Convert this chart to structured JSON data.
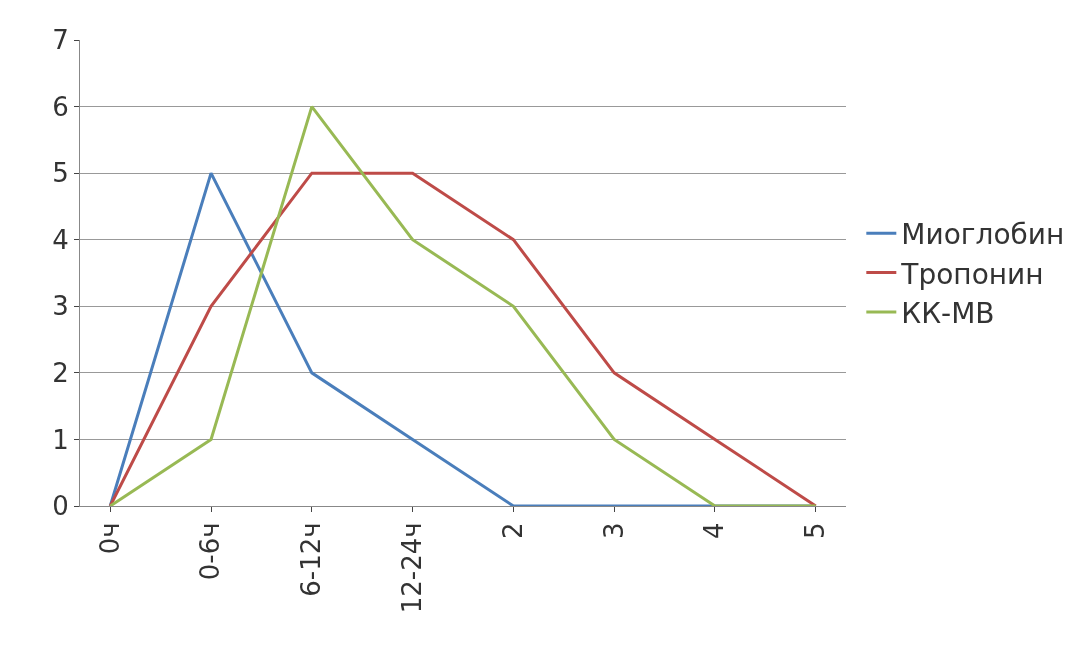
{
  "chart_data": {
    "type": "line",
    "categories": [
      "0ч",
      "0-6ч",
      "6-12ч",
      "12-24ч",
      "2",
      "3",
      "4",
      "5"
    ],
    "series": [
      {
        "name": "Миоглобин",
        "color": "#4a7ebb",
        "values": [
          0,
          5,
          2,
          1,
          0,
          0,
          0,
          0
        ]
      },
      {
        "name": "Тропонин",
        "color": "#be4b48",
        "values": [
          0,
          3,
          5,
          5,
          4,
          2,
          1,
          0
        ]
      },
      {
        "name": "КК-МВ",
        "color": "#98b954",
        "values": [
          0,
          1,
          6,
          4,
          3,
          1,
          0,
          0
        ]
      }
    ],
    "ylim": [
      0,
      7
    ],
    "yticks": [
      0,
      1,
      2,
      3,
      4,
      5,
      6,
      7
    ],
    "grid": "y",
    "legend": "right",
    "marker": "none",
    "line_style": "solid"
  }
}
